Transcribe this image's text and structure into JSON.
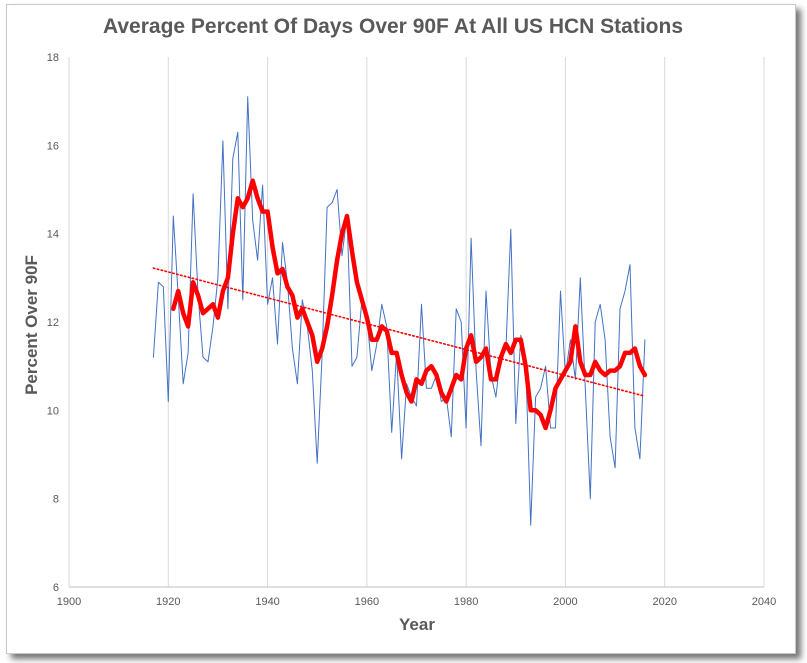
{
  "chart_data": {
    "type": "line",
    "title": "Average Percent Of Days Over 90F At All US HCN Stations",
    "xlabel": "Year",
    "ylabel": "Percent Over 90F",
    "xlim": [
      1900,
      2040
    ],
    "ylim": [
      6,
      18
    ],
    "xticks": [
      1900,
      1920,
      1940,
      1960,
      1980,
      2000,
      2020,
      2040
    ],
    "yticks": [
      6,
      8,
      10,
      12,
      14,
      16,
      18
    ],
    "grid": "vertical",
    "legend": "none",
    "series": [
      {
        "role": "annual",
        "color": "#4472c4",
        "x": [
          1917,
          1918,
          1919,
          1920,
          1921,
          1922,
          1923,
          1924,
          1925,
          1926,
          1927,
          1928,
          1929,
          1930,
          1931,
          1932,
          1933,
          1934,
          1935,
          1936,
          1937,
          1938,
          1939,
          1940,
          1941,
          1942,
          1943,
          1944,
          1945,
          1946,
          1947,
          1948,
          1949,
          1950,
          1951,
          1952,
          1953,
          1954,
          1955,
          1956,
          1957,
          1958,
          1959,
          1960,
          1961,
          1962,
          1963,
          1964,
          1965,
          1966,
          1967,
          1968,
          1969,
          1970,
          1971,
          1972,
          1973,
          1974,
          1975,
          1976,
          1977,
          1978,
          1979,
          1980,
          1981,
          1982,
          1983,
          1984,
          1985,
          1986,
          1987,
          1988,
          1989,
          1990,
          1991,
          1992,
          1993,
          1994,
          1995,
          1996,
          1997,
          1998,
          1999,
          2000,
          2001,
          2002,
          2003,
          2004,
          2005,
          2006,
          2007,
          2008,
          2009,
          2010,
          2011,
          2012,
          2013,
          2014,
          2015,
          2016
        ],
        "y": [
          11.2,
          12.9,
          12.8,
          10.2,
          14.4,
          12.6,
          10.6,
          11.3,
          14.9,
          12.6,
          11.2,
          11.1,
          11.9,
          13.0,
          16.1,
          12.3,
          15.7,
          16.3,
          12.5,
          17.1,
          14.3,
          13.4,
          15.1,
          12.4,
          13.0,
          11.5,
          13.8,
          12.9,
          11.4,
          10.6,
          12.5,
          11.9,
          10.9,
          8.8,
          11.3,
          14.6,
          14.7,
          15.0,
          13.5,
          14.4,
          11.0,
          11.2,
          12.5,
          12.1,
          10.9,
          11.5,
          12.4,
          11.9,
          9.5,
          11.3,
          8.9,
          10.6,
          10.3,
          10.1,
          12.4,
          10.5,
          10.5,
          10.8,
          10.2,
          10.3,
          9.4,
          12.3,
          12.0,
          9.6,
          13.9,
          10.9,
          9.2,
          12.7,
          10.8,
          10.3,
          11.3,
          11.4,
          14.1,
          9.7,
          11.7,
          11.1,
          7.4,
          10.3,
          10.5,
          11.0,
          9.6,
          9.6,
          12.7,
          10.8,
          11.6,
          10.7,
          13.0,
          10.5,
          8.0,
          12.0,
          12.4,
          11.6,
          9.4,
          8.7,
          12.3,
          12.7,
          13.3,
          9.6,
          8.9,
          11.6
        ]
      },
      {
        "role": "moving-average",
        "color": "#ff0000",
        "x": [
          1921,
          1922,
          1923,
          1924,
          1925,
          1926,
          1927,
          1928,
          1929,
          1930,
          1931,
          1932,
          1933,
          1934,
          1935,
          1936,
          1937,
          1938,
          1939,
          1940,
          1941,
          1942,
          1943,
          1944,
          1945,
          1946,
          1947,
          1948,
          1949,
          1950,
          1951,
          1952,
          1953,
          1954,
          1955,
          1956,
          1957,
          1958,
          1959,
          1960,
          1961,
          1962,
          1963,
          1964,
          1965,
          1966,
          1967,
          1968,
          1969,
          1970,
          1971,
          1972,
          1973,
          1974,
          1975,
          1976,
          1977,
          1978,
          1979,
          1980,
          1981,
          1982,
          1983,
          1984,
          1985,
          1986,
          1987,
          1988,
          1989,
          1990,
          1991,
          1992,
          1993,
          1994,
          1995,
          1996,
          1997,
          1998,
          1999,
          2000,
          2001,
          2002,
          2003,
          2004,
          2005,
          2006,
          2007,
          2008,
          2009,
          2010,
          2011,
          2012,
          2013,
          2014,
          2015,
          2016
        ],
        "y": [
          12.3,
          12.7,
          12.2,
          11.9,
          12.9,
          12.6,
          12.2,
          12.3,
          12.4,
          12.1,
          12.7,
          13.0,
          14.0,
          14.8,
          14.6,
          14.8,
          15.2,
          14.8,
          14.5,
          14.5,
          13.7,
          13.1,
          13.2,
          12.8,
          12.6,
          12.1,
          12.3,
          12.0,
          11.7,
          11.1,
          11.4,
          11.9,
          12.6,
          13.4,
          14.0,
          14.4,
          13.6,
          12.9,
          12.5,
          12.1,
          11.6,
          11.6,
          11.9,
          11.8,
          11.3,
          11.3,
          10.8,
          10.4,
          10.2,
          10.7,
          10.6,
          10.9,
          11.0,
          10.8,
          10.4,
          10.2,
          10.5,
          10.8,
          10.7,
          11.4,
          11.7,
          11.1,
          11.2,
          11.4,
          10.7,
          10.7,
          11.2,
          11.5,
          11.3,
          11.6,
          11.6,
          11.0,
          10.0,
          10.0,
          9.9,
          9.6,
          10.0,
          10.5,
          10.7,
          10.9,
          11.1,
          11.9,
          11.1,
          10.8,
          10.8,
          11.1,
          10.9,
          10.8,
          10.9,
          10.9,
          11.0,
          11.3,
          11.3,
          11.4,
          11.0,
          10.8
        ]
      },
      {
        "role": "trend",
        "color": "#ff0000",
        "x": [
          1917,
          2016
        ],
        "y": [
          13.22,
          10.32
        ]
      }
    ]
  }
}
